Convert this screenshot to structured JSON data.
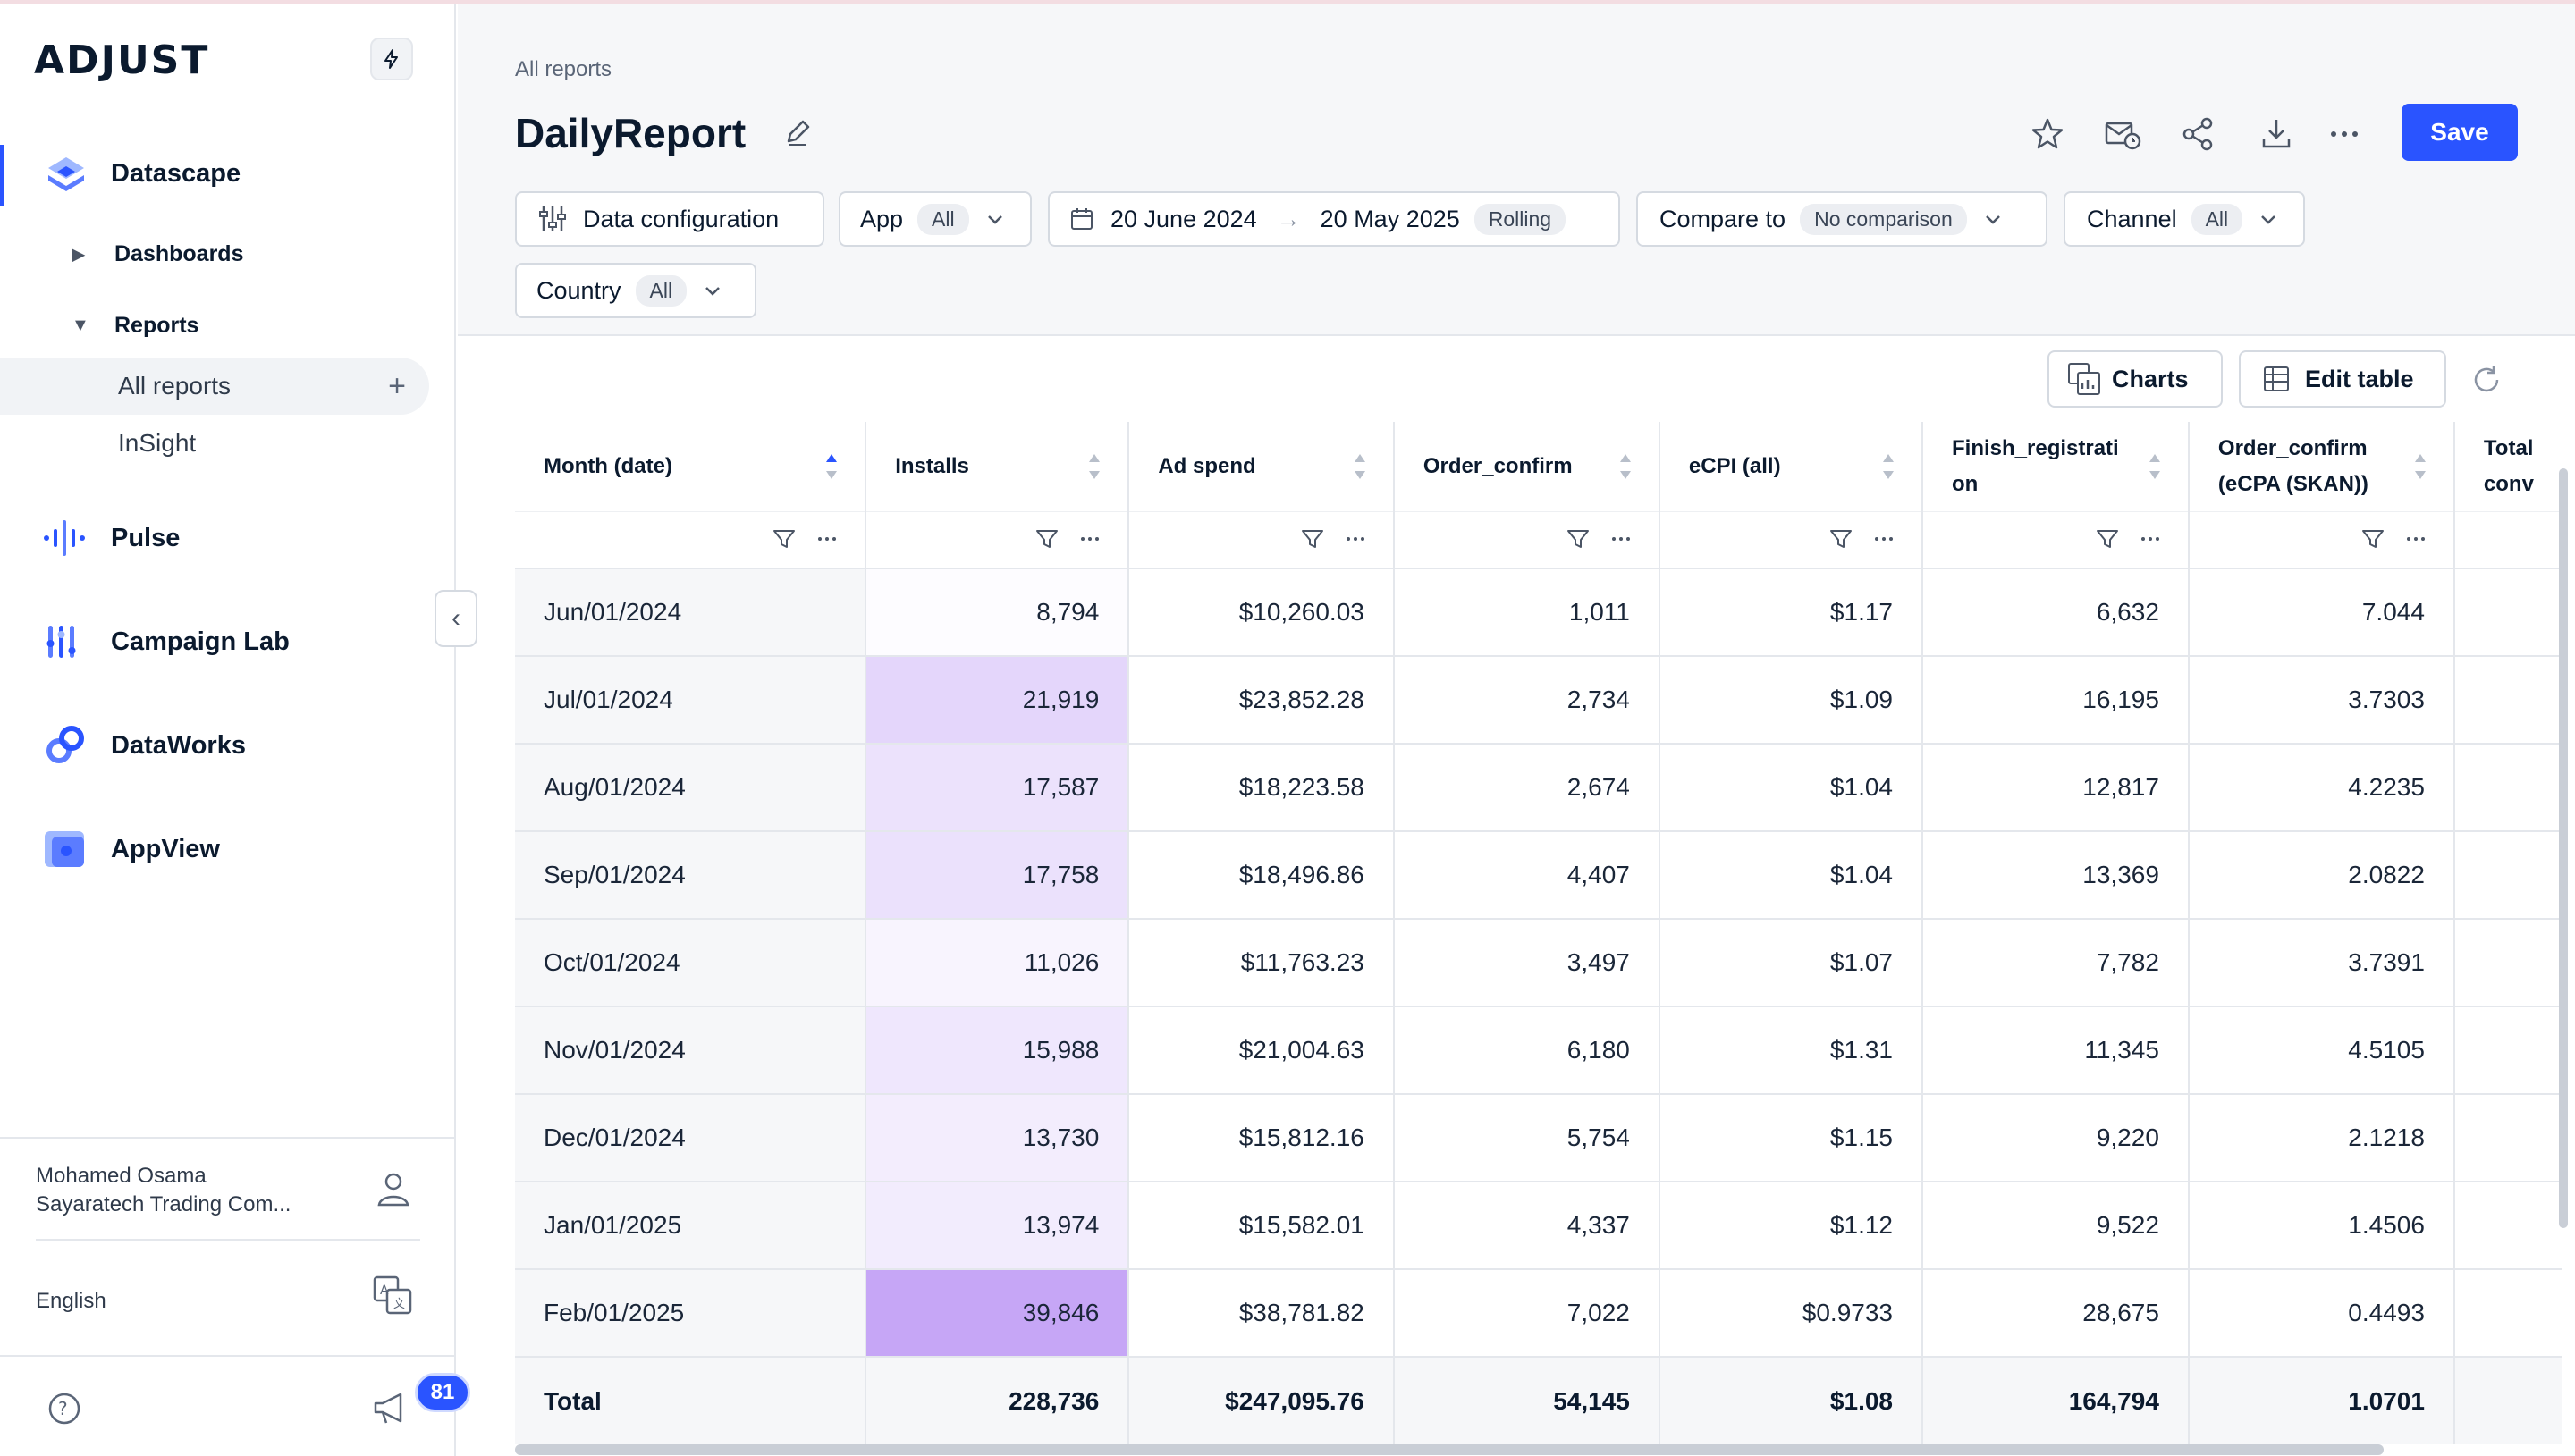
{
  "sidebar": {
    "logo": "ADJUST",
    "nav": {
      "datascape": "Datascape",
      "dashboards": "Dashboards",
      "reports": "Reports",
      "all_reports": "All reports",
      "insight": "InSight",
      "pulse": "Pulse",
      "campaign_lab": "Campaign Lab",
      "dataworks": "DataWorks",
      "appview": "AppView"
    },
    "user": {
      "name": "Mohamed Osama",
      "company": "Sayaratech Trading Com..."
    },
    "language": "English",
    "notifications_count": "81"
  },
  "header": {
    "breadcrumb": "All reports",
    "title": "DailyReport",
    "save_label": "Save"
  },
  "filters": {
    "data_config": "Data configuration",
    "app_label": "App",
    "app_value": "All",
    "date_start": "20 June 2024",
    "date_end": "20 May 2025",
    "date_mode": "Rolling",
    "compare_label": "Compare to",
    "compare_value": "No comparison",
    "channel_label": "Channel",
    "channel_value": "All",
    "country_label": "Country",
    "country_value": "All"
  },
  "toolbar": {
    "charts_label": "Charts",
    "edit_table_label": "Edit table"
  },
  "table": {
    "columns": [
      {
        "line1": "Month (date)",
        "line2": ""
      },
      {
        "line1": "Installs",
        "line2": ""
      },
      {
        "line1": "Ad spend",
        "line2": ""
      },
      {
        "line1": "Order_confirm",
        "line2": ""
      },
      {
        "line1": "eCPI (all)",
        "line2": ""
      },
      {
        "line1": "Finish_registrati",
        "line2": "on"
      },
      {
        "line1": "Order_confirm",
        "line2": "(eCPA (SKAN))"
      },
      {
        "line1": "Total",
        "line2": "conv"
      }
    ],
    "rows": [
      {
        "c0": "Jun/01/2024",
        "c1": "8,794",
        "c2": "$10,260.03",
        "c3": "1,011",
        "c4": "$1.17",
        "c5": "6,632",
        "c6": "7.044",
        "c7": ""
      },
      {
        "c0": "Jul/01/2024",
        "c1": "21,919",
        "c2": "$23,852.28",
        "c3": "2,734",
        "c4": "$1.09",
        "c5": "16,195",
        "c6": "3.7303",
        "c7": ""
      },
      {
        "c0": "Aug/01/2024",
        "c1": "17,587",
        "c2": "$18,223.58",
        "c3": "2,674",
        "c4": "$1.04",
        "c5": "12,817",
        "c6": "4.2235",
        "c7": ""
      },
      {
        "c0": "Sep/01/2024",
        "c1": "17,758",
        "c2": "$18,496.86",
        "c3": "4,407",
        "c4": "$1.04",
        "c5": "13,369",
        "c6": "2.0822",
        "c7": ""
      },
      {
        "c0": "Oct/01/2024",
        "c1": "11,026",
        "c2": "$11,763.23",
        "c3": "3,497",
        "c4": "$1.07",
        "c5": "7,782",
        "c6": "3.7391",
        "c7": ""
      },
      {
        "c0": "Nov/01/2024",
        "c1": "15,988",
        "c2": "$21,004.63",
        "c3": "6,180",
        "c4": "$1.31",
        "c5": "11,345",
        "c6": "4.5105",
        "c7": ""
      },
      {
        "c0": "Dec/01/2024",
        "c1": "13,730",
        "c2": "$15,812.16",
        "c3": "5,754",
        "c4": "$1.15",
        "c5": "9,220",
        "c6": "2.1218",
        "c7": ""
      },
      {
        "c0": "Jan/01/2025",
        "c1": "13,974",
        "c2": "$15,582.01",
        "c3": "4,337",
        "c4": "$1.12",
        "c5": "9,522",
        "c6": "1.4506",
        "c7": ""
      },
      {
        "c0": "Feb/01/2025",
        "c1": "39,846",
        "c2": "$38,781.82",
        "c3": "7,022",
        "c4": "$0.9733",
        "c5": "28,675",
        "c6": "0.4493",
        "c7": ""
      }
    ],
    "installs_heat": [
      "#fdfcff",
      "#e4d6fb",
      "#ece2fc",
      "#ebe1fc",
      "#f8f4fe",
      "#efe7fd",
      "#f3edfd",
      "#f2ecfd",
      "#c6a6f6"
    ],
    "total": {
      "c0": "Total",
      "c1": "228,736",
      "c2": "$247,095.76",
      "c3": "54,145",
      "c4": "$1.08",
      "c5": "164,794",
      "c6": "1.0701",
      "c7": ""
    }
  },
  "colors": {
    "accent": "#2a54ff",
    "heat_max": "#c6a6f6"
  }
}
